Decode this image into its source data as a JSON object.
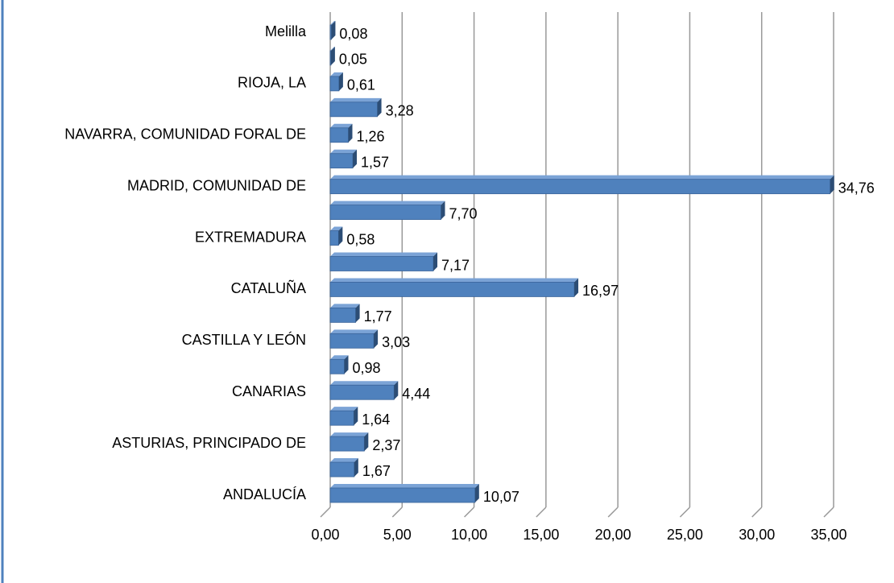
{
  "chart_data": {
    "type": "bar",
    "orientation": "horizontal",
    "categories": [
      "ANDALUCÍA",
      null,
      "ASTURIAS, PRINCIPADO DE",
      null,
      "CANARIAS",
      null,
      "CASTILLA Y LEÓN",
      null,
      "CATALUÑA",
      null,
      "EXTREMADURA",
      null,
      "MADRID, COMUNIDAD DE",
      null,
      "NAVARRA, COMUNIDAD FORAL DE",
      null,
      "RIOJA, LA",
      null,
      "Melilla"
    ],
    "values": [
      10.07,
      1.67,
      2.37,
      1.64,
      4.44,
      0.98,
      3.03,
      1.77,
      16.97,
      7.17,
      0.58,
      7.7,
      34.76,
      1.57,
      1.26,
      3.28,
      0.61,
      0.05,
      0.08
    ],
    "value_labels": [
      "10,07",
      "1,67",
      "2,37",
      "1,64",
      "4,44",
      "0,98",
      "3,03",
      "1,77",
      "16,97",
      "7,17",
      "0,58",
      "7,70",
      "34,76",
      "1,57",
      "1,26",
      "3,28",
      "0,61",
      "0,05",
      "0,08"
    ],
    "color": "#4f81bd",
    "xlim": [
      0,
      35
    ],
    "xticks": [
      {
        "value": 0,
        "label": "0,00"
      },
      {
        "value": 5,
        "label": "5,00"
      },
      {
        "value": 10,
        "label": "10,00"
      },
      {
        "value": 15,
        "label": "15,00"
      },
      {
        "value": 20,
        "label": "20,00"
      },
      {
        "value": 25,
        "label": "25,00"
      },
      {
        "value": 30,
        "label": "30,00"
      },
      {
        "value": 35,
        "label": "35,00"
      }
    ],
    "grid": true
  }
}
